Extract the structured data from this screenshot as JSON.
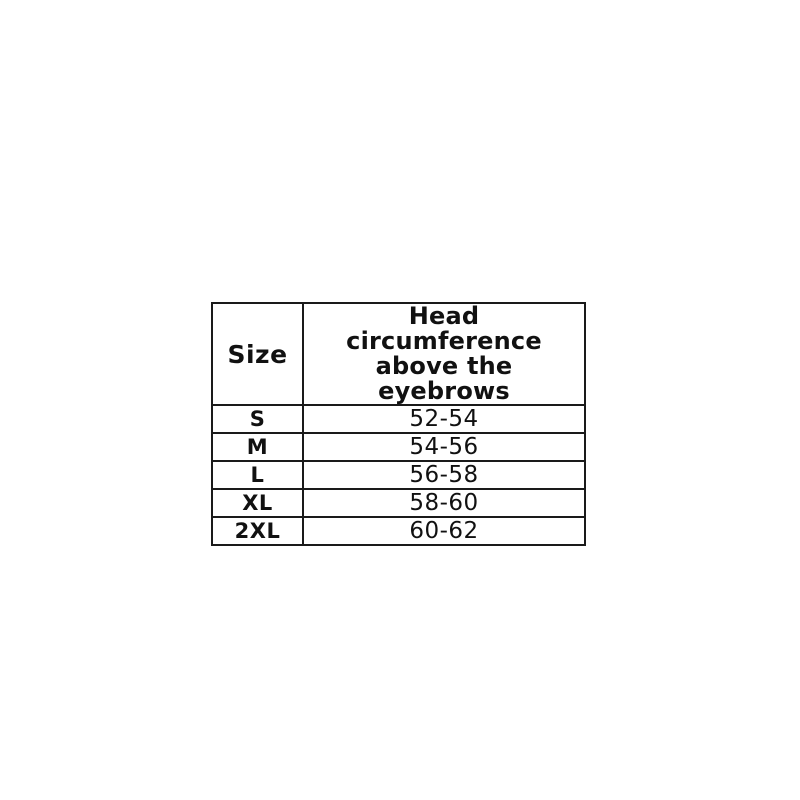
{
  "chart_data": {
    "type": "table",
    "title": "",
    "columns": [
      "Size",
      "Head circumference above the eyebrows"
    ],
    "rows": [
      [
        "S",
        "52-54"
      ],
      [
        "M",
        "54-56"
      ],
      [
        "L",
        "56-58"
      ],
      [
        "XL",
        "58-60"
      ],
      [
        "2XL",
        "60-62"
      ]
    ]
  },
  "table": {
    "header": {
      "size_label": "Size",
      "circumference_label": "Head circumference above the eyebrows"
    },
    "rows": [
      {
        "size": "S",
        "range": "52-54"
      },
      {
        "size": "M",
        "range": "54-56"
      },
      {
        "size": "L",
        "range": "56-58"
      },
      {
        "size": "XL",
        "range": "58-60"
      },
      {
        "size": "2XL",
        "range": "60-62"
      }
    ]
  },
  "colors": {
    "border": "#1a1a1a",
    "text": "#111111",
    "background": "#ffffff"
  }
}
